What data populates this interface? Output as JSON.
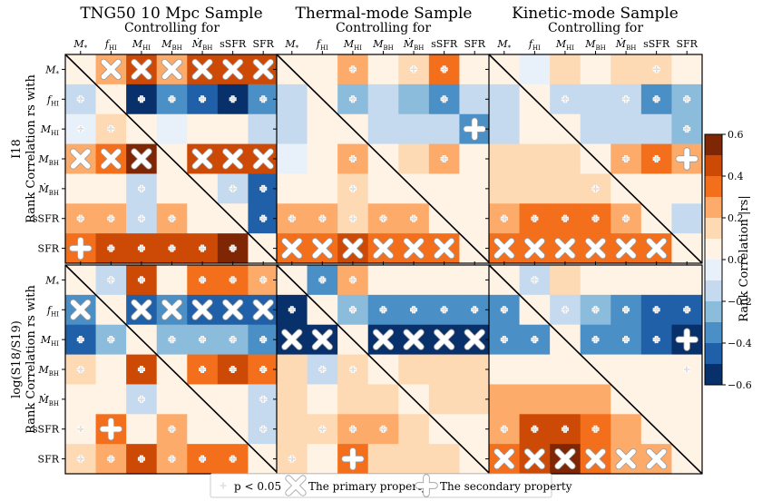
{
  "chart_data": {
    "type": "heatmap",
    "description_title": "Rank correlation matrices",
    "column_titles": [
      "TNG50 10 Mpc Sample",
      "Thermal-mode Sample",
      "Kinetic-mode Sample"
    ],
    "controlling_label": "Controlling for",
    "properties": [
      "M*",
      "fHI",
      "MHI",
      "MBH",
      "dMBH/dt",
      "sSFR",
      "SFR"
    ],
    "row_labels": [
      {
        "line1": "I18",
        "line2": "Rank Correlation rs with"
      },
      {
        "line1": "log(S18/S19)",
        "line2": "Rank Correlation rs with"
      }
    ],
    "colorbar": {
      "label": "Rank Correlation |rs|",
      "ticks": [
        "0.6",
        "0.4",
        "0.2",
        "0.0",
        "−0.2",
        "−0.4",
        "−0.6"
      ],
      "tick_values": [
        0.6,
        0.4,
        0.2,
        0.0,
        -0.2,
        -0.4,
        -0.6
      ],
      "range": [
        -0.6,
        0.6
      ],
      "levels": 12
    },
    "legend": {
      "small_plus": "p < 0.05",
      "big_x": "The primary property",
      "big_plus": "The secondary property"
    },
    "marker_codes": {
      "p": "p < 0.05",
      "X": "primary property",
      "P": "secondary property",
      "": "none"
    },
    "panels": [
      {
        "sample": "TNG50 10 Mpc Sample",
        "target": "I18",
        "values": [
          [
            0.0,
            0.25,
            0.45,
            0.25,
            0.45,
            0.45,
            0.45
          ],
          [
            -0.15,
            0.0,
            -0.55,
            -0.35,
            -0.45,
            -0.55,
            -0.35
          ],
          [
            -0.1,
            0.15,
            0.0,
            -0.05,
            0.05,
            0.05,
            -0.15
          ],
          [
            0.25,
            0.35,
            0.55,
            0.0,
            0.45,
            0.45,
            0.45
          ],
          [
            0.05,
            0.05,
            -0.15,
            0.05,
            0.0,
            -0.15,
            -0.45
          ],
          [
            0.25,
            0.25,
            -0.15,
            0.25,
            0.05,
            0.0,
            -0.45
          ],
          [
            0.35,
            0.45,
            0.45,
            0.45,
            0.45,
            0.55,
            0.0
          ]
        ],
        "markers": [
          [
            "",
            "X",
            "X",
            "X",
            "X",
            "X",
            "X"
          ],
          [
            "p",
            "",
            "p",
            "p",
            "p",
            "p",
            "p"
          ],
          [
            "p",
            "p",
            "",
            "",
            "",
            "",
            ""
          ],
          [
            "X",
            "X",
            "X",
            "",
            "X",
            "X",
            "X"
          ],
          [
            "",
            "",
            "p",
            "",
            "",
            "p",
            "p"
          ],
          [
            "p",
            "p",
            "p",
            "p",
            "",
            "",
            "p"
          ],
          [
            "P",
            "p",
            "p",
            "p",
            "p",
            "p",
            ""
          ]
        ]
      },
      {
        "sample": "Thermal-mode Sample",
        "target": "I18",
        "values": [
          [
            0.0,
            0.05,
            0.25,
            0.05,
            0.15,
            0.35,
            0.05
          ],
          [
            -0.15,
            0.0,
            -0.25,
            -0.15,
            -0.25,
            -0.35,
            -0.15
          ],
          [
            -0.15,
            0.05,
            0.0,
            -0.15,
            -0.15,
            -0.15,
            -0.35
          ],
          [
            -0.05,
            0.05,
            0.25,
            0.0,
            0.15,
            0.25,
            0.05
          ],
          [
            0.05,
            0.05,
            0.15,
            0.05,
            0.0,
            0.05,
            0.05
          ],
          [
            0.25,
            0.25,
            0.15,
            0.25,
            0.25,
            0.0,
            0.05
          ],
          [
            0.35,
            0.35,
            0.45,
            0.35,
            0.35,
            0.35,
            0.0
          ]
        ],
        "markers": [
          [
            "",
            "",
            "p",
            "",
            "p",
            "p",
            ""
          ],
          [
            "",
            "",
            "p",
            "",
            "",
            "p",
            ""
          ],
          [
            "",
            "",
            "",
            "",
            "",
            "",
            "P"
          ],
          [
            "",
            "",
            "p",
            "",
            "",
            "p",
            ""
          ],
          [
            "",
            "",
            "p",
            "",
            "",
            "",
            ""
          ],
          [
            "p",
            "p",
            "p",
            "p",
            "p",
            "",
            ""
          ],
          [
            "X",
            "X",
            "X",
            "X",
            "X",
            "X",
            ""
          ]
        ]
      },
      {
        "sample": "Kinetic-mode Sample",
        "target": "I18",
        "values": [
          [
            0.0,
            -0.05,
            0.15,
            0.05,
            0.15,
            0.15,
            0.05
          ],
          [
            -0.15,
            0.0,
            -0.15,
            -0.15,
            -0.15,
            -0.35,
            -0.25
          ],
          [
            -0.15,
            0.05,
            0.0,
            -0.15,
            -0.15,
            -0.15,
            -0.25
          ],
          [
            0.15,
            0.15,
            0.15,
            0.0,
            0.25,
            0.35,
            0.25
          ],
          [
            0.15,
            0.15,
            0.15,
            0.15,
            0.0,
            0.05,
            0.05
          ],
          [
            0.25,
            0.35,
            0.35,
            0.35,
            0.25,
            0.0,
            -0.15
          ],
          [
            0.35,
            0.35,
            0.35,
            0.35,
            0.35,
            0.35,
            0.0
          ]
        ],
        "markers": [
          [
            "",
            "",
            "",
            "",
            "",
            "p",
            ""
          ],
          [
            "",
            "",
            "p",
            "",
            "p",
            "p",
            "p"
          ],
          [
            "",
            "",
            "",
            "",
            "",
            "",
            "p"
          ],
          [
            "",
            "",
            "",
            "",
            "p",
            "p",
            "P"
          ],
          [
            "",
            "",
            "",
            "p",
            "",
            "",
            ""
          ],
          [
            "p",
            "p",
            "p",
            "p",
            "p",
            "",
            ""
          ],
          [
            "X",
            "X",
            "X",
            "X",
            "X",
            "X",
            ""
          ]
        ]
      },
      {
        "sample": "TNG50 10 Mpc Sample",
        "target": "log(S18/S19)",
        "values": [
          [
            0.0,
            -0.15,
            0.45,
            0.05,
            0.35,
            0.35,
            0.25
          ],
          [
            -0.35,
            0.0,
            -0.45,
            -0.35,
            -0.45,
            -0.45,
            -0.45
          ],
          [
            -0.45,
            -0.25,
            0.0,
            -0.25,
            -0.25,
            -0.25,
            -0.35
          ],
          [
            0.15,
            0.05,
            0.45,
            0.0,
            0.35,
            0.45,
            0.35
          ],
          [
            0.05,
            0.05,
            -0.15,
            0.05,
            0.0,
            0.05,
            -0.15
          ],
          [
            0.05,
            0.35,
            0.05,
            0.25,
            0.05,
            0.0,
            -0.15
          ],
          [
            0.15,
            0.25,
            0.45,
            0.25,
            0.35,
            0.35,
            0.0
          ]
        ],
        "markers": [
          [
            "",
            "p",
            "p",
            "",
            "p",
            "p",
            "p"
          ],
          [
            "X",
            "",
            "X",
            "X",
            "X",
            "X",
            "X"
          ],
          [
            "p",
            "p",
            "",
            "p",
            "p",
            "p",
            "p"
          ],
          [
            "p",
            "",
            "p",
            "",
            "p",
            "p",
            "p"
          ],
          [
            "",
            "",
            "p",
            "",
            "",
            "",
            "p"
          ],
          [
            "p",
            "P",
            "",
            "p",
            "",
            "",
            "p"
          ],
          [
            "p",
            "p",
            "p",
            "p",
            "p",
            "p",
            ""
          ]
        ]
      },
      {
        "sample": "Thermal-mode Sample",
        "target": "log(S18/S19)",
        "values": [
          [
            0.0,
            -0.35,
            0.25,
            0.05,
            0.05,
            0.05,
            0.05
          ],
          [
            -0.55,
            0.0,
            -0.25,
            -0.35,
            -0.35,
            -0.35,
            -0.35
          ],
          [
            -0.55,
            -0.55,
            0.0,
            -0.55,
            -0.55,
            -0.55,
            -0.55
          ],
          [
            0.15,
            -0.15,
            0.15,
            0.0,
            0.15,
            0.15,
            0.15
          ],
          [
            0.15,
            0.05,
            0.15,
            0.15,
            0.0,
            0.15,
            0.15
          ],
          [
            0.15,
            0.15,
            0.25,
            0.25,
            0.15,
            0.0,
            0.05
          ],
          [
            0.15,
            0.05,
            0.35,
            0.15,
            0.15,
            0.15,
            0.0
          ]
        ],
        "markers": [
          [
            "",
            "p",
            "p",
            "",
            "",
            "",
            ""
          ],
          [
            "p",
            "",
            "p",
            "p",
            "p",
            "p",
            "p"
          ],
          [
            "X",
            "X",
            "",
            "X",
            "X",
            "X",
            "X"
          ],
          [
            "",
            "p",
            "p",
            "",
            "",
            "",
            ""
          ],
          [
            "",
            "",
            "",
            "",
            "",
            "",
            ""
          ],
          [
            "",
            "p",
            "p",
            "p",
            "",
            "",
            ""
          ],
          [
            "p",
            "",
            "P",
            "",
            "",
            "",
            ""
          ]
        ]
      },
      {
        "sample": "Kinetic-mode Sample",
        "target": "log(S18/S19)",
        "values": [
          [
            0.0,
            -0.15,
            0.15,
            0.05,
            0.05,
            0.05,
            0.05
          ],
          [
            -0.35,
            0.0,
            -0.15,
            -0.25,
            -0.35,
            -0.45,
            -0.45
          ],
          [
            -0.35,
            -0.35,
            0.0,
            -0.35,
            -0.35,
            -0.45,
            -0.55
          ],
          [
            0.05,
            0.05,
            0.05,
            0.0,
            0.05,
            0.05,
            0.05
          ],
          [
            0.25,
            0.25,
            0.25,
            0.25,
            0.0,
            0.05,
            0.05
          ],
          [
            0.25,
            0.45,
            0.45,
            0.35,
            0.25,
            0.0,
            0.05
          ],
          [
            0.35,
            0.45,
            0.55,
            0.35,
            0.25,
            0.25,
            0.0
          ]
        ],
        "markers": [
          [
            "",
            "p",
            "",
            "",
            "",
            "",
            ""
          ],
          [
            "p",
            "",
            "p",
            "p",
            "p",
            "p",
            "p"
          ],
          [
            "p",
            "p",
            "",
            "p",
            "p",
            "p",
            "P"
          ],
          [
            "",
            "",
            "",
            "",
            "",
            "",
            "p"
          ],
          [
            "",
            "",
            "",
            "",
            "",
            "",
            ""
          ],
          [
            "p",
            "p",
            "p",
            "p",
            "",
            "",
            ""
          ],
          [
            "X",
            "X",
            "X",
            "X",
            "X",
            "X",
            ""
          ]
        ]
      }
    ]
  }
}
